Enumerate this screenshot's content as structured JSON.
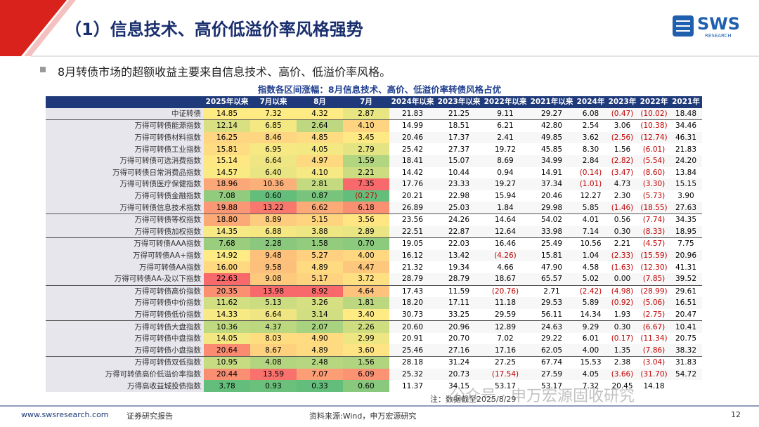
{
  "header": {
    "title": "（1）信息技术、高价低溢价率风格强势",
    "logo": "SWS",
    "logo_sub": "RESEARCH"
  },
  "bullet": "8月转债市场的超额收益主要来自信息技术、高价、低溢价率风格。",
  "table": {
    "caption": "指数各区间涨幅：8月信息技术、高价、低溢价率转债风格占优",
    "columns": [
      "2025年以来",
      "7月以来",
      "8月",
      "7月",
      "2024年以来",
      "2023年以来",
      "2022年以来",
      "2021年以来",
      "2024年",
      "2023年",
      "2022年",
      "2021年"
    ],
    "rows": [
      {
        "label": "中证转债",
        "cells": [
          "14.85",
          "7.32",
          "4.32",
          "2.87",
          "21.83",
          "21.25",
          "9.11",
          "29.27",
          "6.08",
          "(0.47)",
          "(10.02)",
          "18.48"
        ]
      },
      {
        "label": "万得可转债能源指数",
        "cells": [
          "12.14",
          "6.85",
          "2.64",
          "4.10",
          "14.99",
          "18.51",
          "6.21",
          "42.80",
          "2.54",
          "3.06",
          "(10.38)",
          "34.46"
        ]
      },
      {
        "label": "万得可转债材料指数",
        "cells": [
          "16.25",
          "8.46",
          "4.85",
          "3.45",
          "20.46",
          "17.37",
          "2.41",
          "49.85",
          "3.62",
          "(2.56)",
          "(12.74)",
          "46.31"
        ]
      },
      {
        "label": "万得可转债工业指数",
        "cells": [
          "15.81",
          "6.95",
          "4.05",
          "2.79",
          "25.42",
          "27.37",
          "19.72",
          "45.85",
          "8.30",
          "1.56",
          "(6.01)",
          "21.83"
        ]
      },
      {
        "label": "万得可转债可选消费指数",
        "cells": [
          "15.14",
          "6.64",
          "4.97",
          "1.59",
          "18.41",
          "15.07",
          "8.69",
          "34.99",
          "2.84",
          "(2.82)",
          "(5.54)",
          "24.20"
        ]
      },
      {
        "label": "万得可转债日常消费品指数",
        "cells": [
          "14.57",
          "6.40",
          "4.10",
          "2.21",
          "14.42",
          "10.44",
          "0.94",
          "14.91",
          "(0.14)",
          "(3.47)",
          "(8.60)",
          "13.84"
        ]
      },
      {
        "label": "万得可转债医疗保健指数",
        "cells": [
          "18.96",
          "10.36",
          "2.81",
          "7.35",
          "17.76",
          "23.33",
          "19.27",
          "37.34",
          "(1.01)",
          "4.73",
          "(3.30)",
          "15.15"
        ]
      },
      {
        "label": "万得可转债金融指数",
        "cells": [
          "7.08",
          "0.60",
          "0.87",
          "(0.27)",
          "20.21",
          "22.98",
          "15.94",
          "20.46",
          "12.27",
          "2.30",
          "(5.73)",
          "3.90"
        ]
      },
      {
        "label": "万得可转债信息技术指数",
        "cells": [
          "19.88",
          "13.22",
          "6.62",
          "6.18",
          "26.89",
          "25.03",
          "1.84",
          "29.98",
          "5.85",
          "(1.46)",
          "(18.55)",
          "27.63"
        ]
      },
      {
        "label": "万得可转债等权指数",
        "cells": [
          "18.80",
          "8.89",
          "5.15",
          "3.56",
          "23.56",
          "24.26",
          "14.64",
          "54.02",
          "4.01",
          "0.56",
          "(7.74)",
          "34.35"
        ]
      },
      {
        "label": "万得可转债加权指数",
        "cells": [
          "14.35",
          "6.88",
          "3.88",
          "2.89",
          "22.51",
          "22.87",
          "12.64",
          "33.98",
          "7.14",
          "0.30",
          "(8.33)",
          "18.95"
        ]
      },
      {
        "label": "万得可转债AAA指数",
        "cells": [
          "7.68",
          "2.28",
          "1.58",
          "0.70",
          "19.05",
          "22.03",
          "16.46",
          "25.49",
          "10.56",
          "2.21",
          "(4.57)",
          "7.75"
        ]
      },
      {
        "label": "万得可转债AA+指数",
        "cells": [
          "14.92",
          "9.48",
          "5.27",
          "4.00",
          "16.12",
          "13.42",
          "(4.26)",
          "15.81",
          "1.04",
          "(2.33)",
          "(15.59)",
          "20.96"
        ]
      },
      {
        "label": "万得可转债AA指数",
        "cells": [
          "16.00",
          "9.58",
          "4.89",
          "4.47",
          "21.32",
          "19.34",
          "4.66",
          "47.90",
          "4.58",
          "(1.63)",
          "(12.30)",
          "41.31"
        ]
      },
      {
        "label": "万得可转债AA-及以下指数",
        "cells": [
          "22.63",
          "9.08",
          "5.17",
          "3.72",
          "28.79",
          "28.79",
          "18.67",
          "65.57",
          "5.02",
          "0.00",
          "(7.85)",
          "39.52"
        ]
      },
      {
        "label": "万得可转债高价指数",
        "cells": [
          "20.35",
          "13.98",
          "8.92",
          "4.64",
          "17.43",
          "11.59",
          "(20.76)",
          "2.71",
          "(2.42)",
          "(4.98)",
          "(28.99)",
          "29.61"
        ]
      },
      {
        "label": "万得可转债中价指数",
        "cells": [
          "11.62",
          "5.13",
          "3.26",
          "1.81",
          "18.20",
          "17.11",
          "11.18",
          "29.53",
          "5.89",
          "(0.92)",
          "(5.06)",
          "16.51"
        ]
      },
      {
        "label": "万得可转债低价指数",
        "cells": [
          "14.33",
          "6.64",
          "3.14",
          "3.40",
          "30.73",
          "33.25",
          "29.59",
          "56.11",
          "14.34",
          "1.93",
          "(2.75)",
          "20.47"
        ]
      },
      {
        "label": "万得可转债大盘指数",
        "cells": [
          "10.36",
          "4.37",
          "2.07",
          "2.26",
          "20.60",
          "20.96",
          "12.89",
          "24.63",
          "9.29",
          "0.30",
          "(6.67)",
          "10.41"
        ]
      },
      {
        "label": "万得可转债中盘指数",
        "cells": [
          "14.05",
          "8.03",
          "4.90",
          "2.99",
          "20.91",
          "20.70",
          "7.02",
          "29.22",
          "6.01",
          "(0.17)",
          "(11.34)",
          "20.75"
        ]
      },
      {
        "label": "万得可转债小盘指数",
        "cells": [
          "20.64",
          "8.67",
          "4.89",
          "3.60",
          "25.46",
          "27.16",
          "17.16",
          "62.05",
          "4.00",
          "1.35",
          "(7.86)",
          "38.32"
        ]
      },
      {
        "label": "万得可转债双低指数",
        "cells": [
          "10.95",
          "4.08",
          "2.48",
          "1.56",
          "28.18",
          "31.24",
          "27.25",
          "67.74",
          "15.53",
          "2.38",
          "(3.04)",
          "31.83"
        ]
      },
      {
        "label": "万得可转债高价低溢价率指数",
        "cells": [
          "20.44",
          "13.59",
          "7.07",
          "6.09",
          "25.32",
          "20.73",
          "(17.54)",
          "27.59",
          "4.05",
          "(3.66)",
          "(31.70)",
          "54.72"
        ]
      },
      {
        "label": "万得高收益城投债指数",
        "cells": [
          "3.78",
          "0.93",
          "0.33",
          "0.60",
          "11.37",
          "34.15",
          "53.17",
          "53.17",
          "7.32",
          "20.45",
          "14.18",
          null
        ]
      }
    ],
    "note": "注：数据截至2025/8/29"
  },
  "footer": {
    "website": "www.swsresearch.com",
    "type": "证券研究报告",
    "source": "资料来源:Wind，申万宏源研究",
    "page": "12"
  },
  "watermark": "公众号 · 申万宏源固收研究"
}
